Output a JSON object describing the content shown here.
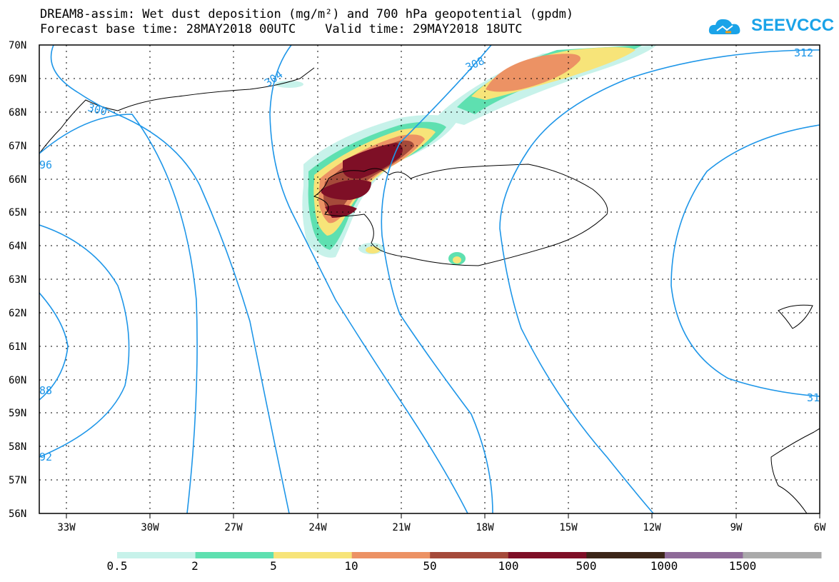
{
  "title_line1": "DREAM8-assim: Wet dust deposition (mg/m²) and 700 hPa geopotential (gpdm)",
  "title_line2": "Forecast base time: 28MAY2018 00UTC    Valid time: 29MAY2018 18UTC",
  "logo_text": "SEEVCCC",
  "lat_labels": [
    "70N",
    "69N",
    "68N",
    "67N",
    "66N",
    "65N",
    "64N",
    "63N",
    "62N",
    "61N",
    "60N",
    "59N",
    "58N",
    "57N",
    "56N"
  ],
  "lon_labels": [
    "33W",
    "30W",
    "27W",
    "24W",
    "21W",
    "18W",
    "15W",
    "12W",
    "9W",
    "6W"
  ],
  "contour_labels": [
    "300",
    "304",
    "308",
    "312",
    "96",
    "88",
    "92",
    "31"
  ],
  "colorbar": {
    "labels": [
      "0.5",
      "2",
      "5",
      "10",
      "50",
      "100",
      "500",
      "1000",
      "1500"
    ],
    "colors": [
      "#c7f2ea",
      "#5ee0b0",
      "#f7e479",
      "#ec9264",
      "#a54a3a",
      "#7e0f26",
      "#3b2518",
      "#8e6a98",
      "#aaaaaa"
    ]
  },
  "contour_color": "#1e96e8"
}
